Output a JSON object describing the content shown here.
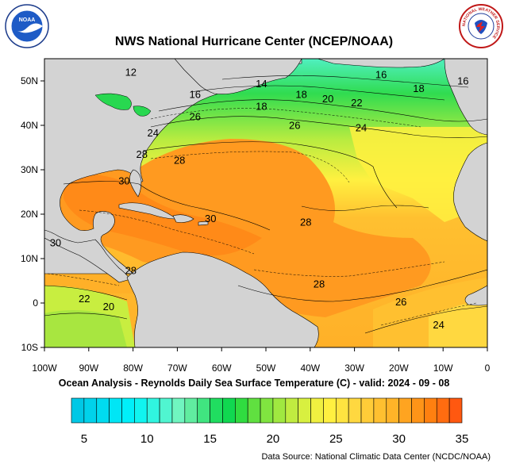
{
  "title": "NWS National Hurricane Center (NCEP/NOAA)",
  "subtitle": "Ocean Analysis - Reynolds Daily Sea Surface Temperature (C) - valid: 2024 - 09 - 08",
  "source": "Data Source: National Climatic Data Center (NCDC/NOAA)",
  "logos": {
    "left": {
      "text": "NOAA",
      "icon": "noaa-logo"
    },
    "right": {
      "ring_text": "NATIONAL WEATHER SERVICE",
      "icon": "nws-logo"
    }
  },
  "map": {
    "lat_labels": [
      "50N",
      "40N",
      "30N",
      "20N",
      "10N",
      "0",
      "10S"
    ],
    "lon_labels": [
      "100W",
      "90W",
      "80W",
      "70W",
      "60W",
      "50W",
      "40W",
      "30W",
      "20W",
      "10W",
      "0"
    ],
    "contour_labels": [
      {
        "text": "12",
        "lon": -80.5,
        "lat": 51.2
      },
      {
        "text": "14",
        "lon": -51,
        "lat": 48.6
      },
      {
        "text": "16",
        "lon": -24,
        "lat": 50.6
      },
      {
        "text": "16",
        "lon": -5.5,
        "lat": 49.2
      },
      {
        "text": "16",
        "lon": -66,
        "lat": 46.2
      },
      {
        "text": "18",
        "lon": -42,
        "lat": 46.2
      },
      {
        "text": "18",
        "lon": -15.5,
        "lat": 47.5
      },
      {
        "text": "18",
        "lon": -51,
        "lat": 43.5
      },
      {
        "text": "20",
        "lon": -36,
        "lat": 45.2
      },
      {
        "text": "22",
        "lon": -29.5,
        "lat": 44.3
      },
      {
        "text": "26",
        "lon": -66,
        "lat": 41.2
      },
      {
        "text": "26",
        "lon": -43.5,
        "lat": 39.2
      },
      {
        "text": "24",
        "lon": -75.5,
        "lat": 37.5
      },
      {
        "text": "24",
        "lon": -28.5,
        "lat": 38.7
      },
      {
        "text": "28",
        "lon": -78,
        "lat": 32.7
      },
      {
        "text": "28",
        "lon": -69.5,
        "lat": 31.3
      },
      {
        "text": "30",
        "lon": -82,
        "lat": 26.7
      },
      {
        "text": "30",
        "lon": -62.5,
        "lat": 18.2
      },
      {
        "text": "28",
        "lon": -41,
        "lat": 17.4
      },
      {
        "text": "30",
        "lon": -97.5,
        "lat": 12.8
      },
      {
        "text": "28",
        "lon": -80.5,
        "lat": 6.5
      },
      {
        "text": "28",
        "lon": -38,
        "lat": 3.5
      },
      {
        "text": "22",
        "lon": -91,
        "lat": 0.2
      },
      {
        "text": "20",
        "lon": -85.5,
        "lat": -1.6
      },
      {
        "text": "26",
        "lon": -19.5,
        "lat": -0.5
      },
      {
        "text": "24",
        "lon": -11,
        "lat": -5.7
      }
    ]
  },
  "colorbar": {
    "min": 4,
    "max": 35,
    "step": 1,
    "tick_labels": [
      "5",
      "10",
      "15",
      "20",
      "25",
      "30",
      "35"
    ],
    "tick_values": [
      5,
      10,
      15,
      20,
      25,
      30,
      35
    ],
    "colors": [
      "#00c8e6",
      "#00d2eb",
      "#00dcf0",
      "#00e6f5",
      "#00f0fa",
      "#10f5f0",
      "#30f5e0",
      "#50f5d0",
      "#70f5c0",
      "#60eda0",
      "#40e580",
      "#20dd60",
      "#10d850",
      "#30dc40",
      "#60e040",
      "#80e440",
      "#a0e840",
      "#c0ec40",
      "#d8f040",
      "#f0f040",
      "#fff040",
      "#ffe440",
      "#ffd840",
      "#ffcc38",
      "#ffc030",
      "#ffb428",
      "#ffa420",
      "#ff9418",
      "#ff8010",
      "#ff6c10",
      "#ff5810"
    ]
  },
  "colors": {
    "land": "#d3d3d3",
    "sst_warm": "#ff9a20",
    "sst_mid": "#ffc830",
    "sst_cool": "#c8ee40",
    "sst_cold": "#30dc50",
    "sst_coldest": "#50f0c0"
  }
}
